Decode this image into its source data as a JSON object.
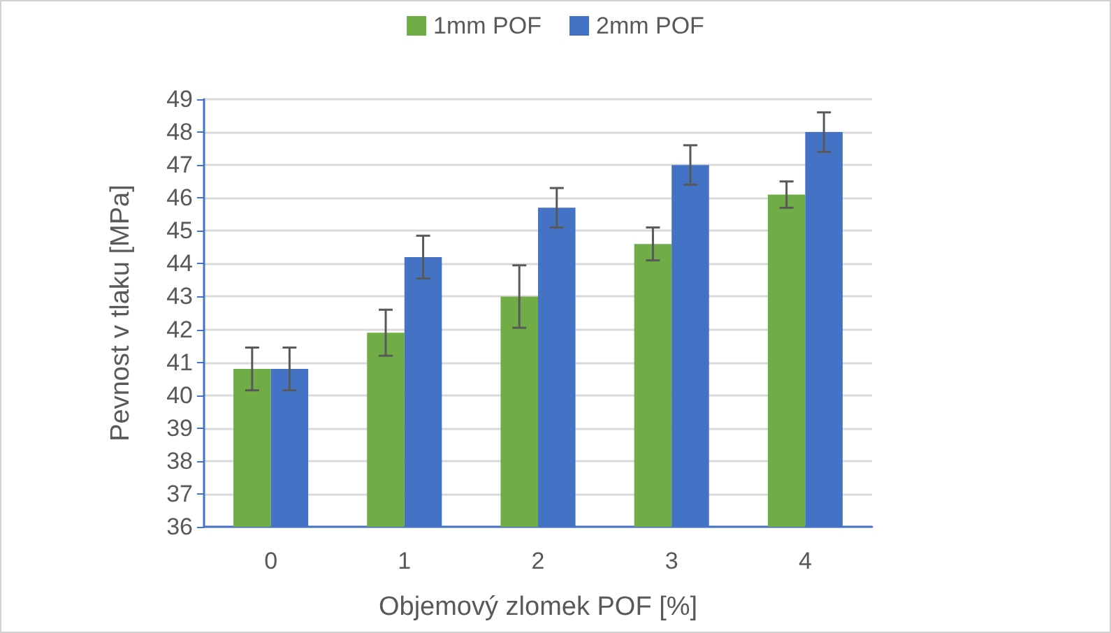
{
  "chart_data": {
    "type": "bar",
    "xlabel": "Objemový zlomek POF [%]",
    "ylabel": "Pevnost v tlaku [MPa]",
    "categories": [
      "0",
      "1",
      "2",
      "3",
      "4"
    ],
    "series": [
      {
        "name": "1mm POF",
        "color": "#70ad47",
        "values": [
          40.8,
          41.9,
          43.0,
          44.6,
          46.1
        ],
        "errors": [
          0.65,
          0.7,
          0.95,
          0.5,
          0.4
        ]
      },
      {
        "name": "2mm POF",
        "color": "#4472c4",
        "values": [
          40.8,
          44.2,
          45.7,
          47.0,
          48.0
        ],
        "errors": [
          0.65,
          0.65,
          0.6,
          0.6,
          0.6
        ]
      }
    ],
    "ylim": [
      36,
      49
    ],
    "yticks": [
      36,
      37,
      38,
      39,
      40,
      41,
      42,
      43,
      44,
      45,
      46,
      47,
      48,
      49
    ],
    "grid": "y",
    "legend": "top"
  }
}
